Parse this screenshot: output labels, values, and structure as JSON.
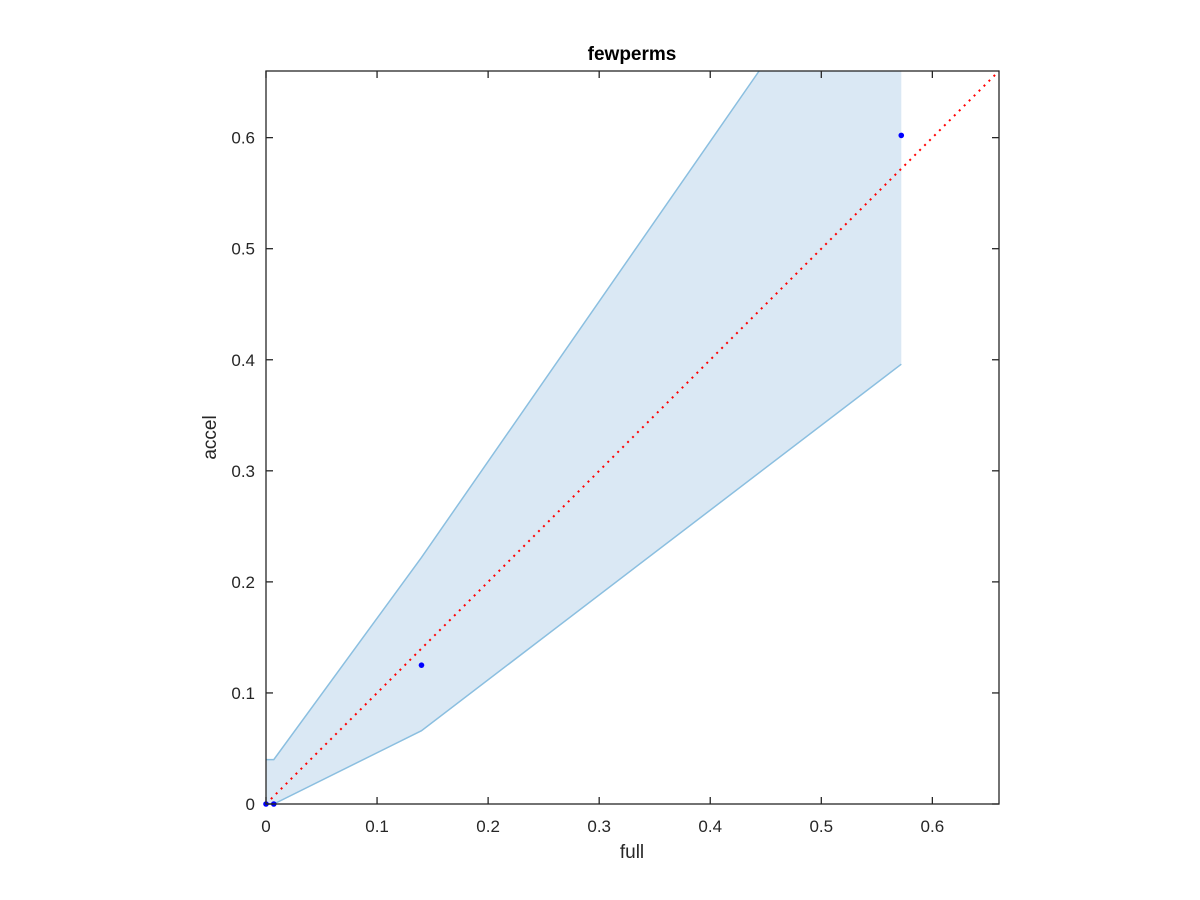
{
  "chart_data": {
    "type": "scatter",
    "title": "fewperms",
    "xlabel": "full",
    "ylabel": "accel",
    "xlim": [
      0,
      0.66
    ],
    "ylim": [
      0,
      0.66
    ],
    "xticks": [
      0,
      0.1,
      0.2,
      0.3,
      0.4,
      0.5,
      0.6
    ],
    "yticks": [
      0,
      0.1,
      0.2,
      0.3,
      0.4,
      0.5,
      0.6
    ],
    "xtick_labels": [
      "0",
      "0.1",
      "0.2",
      "0.3",
      "0.4",
      "0.5",
      "0.6"
    ],
    "ytick_labels": [
      "0",
      "0.1",
      "0.2",
      "0.3",
      "0.4",
      "0.5",
      "0.6"
    ],
    "grid": false,
    "points": {
      "x": [
        0.0,
        0.007,
        0.14,
        0.572
      ],
      "y": [
        0.0,
        0.0,
        0.125,
        0.602
      ],
      "color": "#0000ff"
    },
    "band": {
      "x": [
        0.0,
        0.007,
        0.14,
        0.572
      ],
      "upper": [
        0.04,
        0.04,
        0.222,
        0.66
      ],
      "lower": [
        0.0,
        0.0,
        0.066,
        0.396
      ],
      "upper_clip_x": 0.444,
      "fill_color": "#dae8f4",
      "edge_color": "#8bbfe0"
    },
    "reference_line": {
      "x": [
        0,
        0.66
      ],
      "y": [
        0,
        0.66
      ],
      "style": "dotted",
      "color": "#ff0000"
    }
  }
}
